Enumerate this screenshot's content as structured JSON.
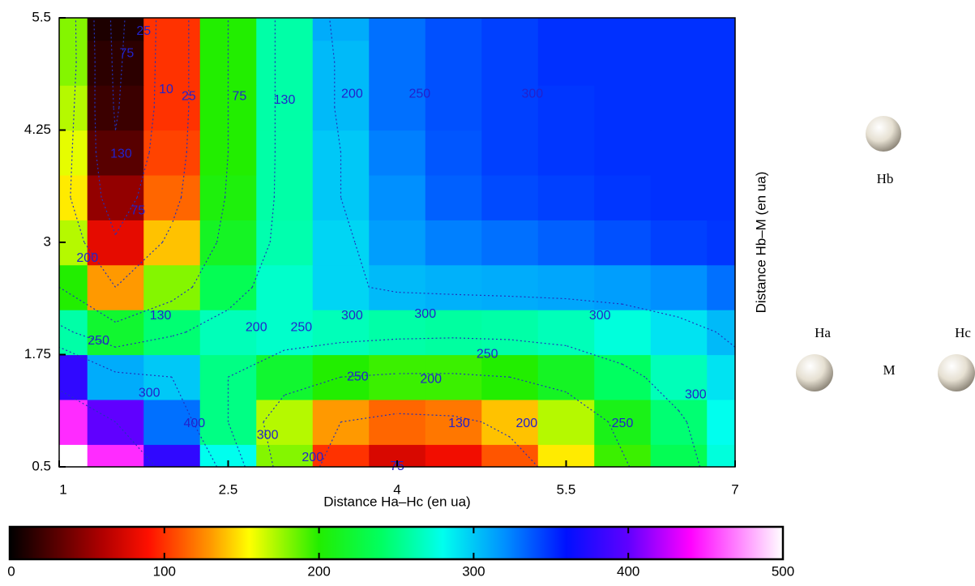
{
  "chart_data": {
    "type": "heatmap",
    "x_label": "Distance Ha–Hc (en ua)",
    "y_label": "Distance Hb–M (en ua)",
    "xlim": [
      1,
      7
    ],
    "ylim": [
      0.5,
      5.5
    ],
    "xticks": [
      1,
      2.5,
      4,
      5.5,
      7
    ],
    "yticks": [
      0.5,
      1.75,
      3,
      4.25,
      5.5
    ],
    "x": [
      1,
      1.5,
      2,
      2.5,
      3,
      3.5,
      4,
      4.5,
      5,
      5.5,
      6,
      6.5,
      7
    ],
    "y": [
      0.5,
      1,
      1.5,
      2,
      2.5,
      3,
      3.5,
      4,
      4.5,
      5,
      5.5
    ],
    "z": [
      [
        500,
        450,
        380,
        280,
        180,
        100,
        75,
        85,
        110,
        150,
        195,
        235,
        275
      ],
      [
        450,
        400,
        330,
        250,
        170,
        130,
        115,
        120,
        140,
        170,
        210,
        245,
        280
      ],
      [
        380,
        310,
        300,
        250,
        220,
        200,
        195,
        195,
        200,
        215,
        240,
        265,
        290
      ],
      [
        260,
        220,
        245,
        265,
        270,
        265,
        260,
        258,
        260,
        265,
        275,
        290,
        305
      ],
      [
        200,
        130,
        180,
        235,
        270,
        295,
        305,
        308,
        310,
        312,
        315,
        320,
        330
      ],
      [
        170,
        80,
        140,
        215,
        262,
        295,
        315,
        325,
        330,
        335,
        340,
        345,
        348
      ],
      [
        150,
        50,
        115,
        205,
        260,
        300,
        320,
        335,
        342,
        345,
        348,
        350,
        350
      ],
      [
        160,
        30,
        105,
        200,
        260,
        300,
        325,
        338,
        345,
        348,
        350,
        350,
        350
      ],
      [
        170,
        20,
        100,
        200,
        260,
        305,
        330,
        340,
        345,
        348,
        350,
        350,
        350
      ],
      [
        180,
        15,
        100,
        200,
        260,
        305,
        330,
        340,
        345,
        350,
        350,
        350,
        350
      ],
      [
        180,
        10,
        100,
        200,
        260,
        310,
        330,
        340,
        345,
        350,
        350,
        350,
        350
      ]
    ],
    "contour_levels": [
      25,
      75,
      130,
      200,
      250,
      300,
      400
    ],
    "contour_color": "#2233bb",
    "contour_labels": [
      {
        "x": 1.75,
        "y": 5.35,
        "label": 25
      },
      {
        "x": 1.6,
        "y": 5.1,
        "label": 75
      },
      {
        "x": 1.95,
        "y": 4.7,
        "label": 10
      },
      {
        "x": 2.15,
        "y": 4.62,
        "label": 25
      },
      {
        "x": 2.6,
        "y": 4.62,
        "label": 75
      },
      {
        "x": 3.0,
        "y": 4.58,
        "label": 130
      },
      {
        "x": 3.6,
        "y": 4.65,
        "label": 200
      },
      {
        "x": 4.2,
        "y": 4.65,
        "label": 250
      },
      {
        "x": 5.2,
        "y": 4.65,
        "label": 300
      },
      {
        "x": 1.55,
        "y": 3.98,
        "label": 130
      },
      {
        "x": 1.7,
        "y": 3.35,
        "label": 75
      },
      {
        "x": 1.25,
        "y": 2.82,
        "label": 200
      },
      {
        "x": 1.9,
        "y": 2.18,
        "label": 130
      },
      {
        "x": 1.35,
        "y": 1.9,
        "label": 250
      },
      {
        "x": 2.75,
        "y": 2.05,
        "label": 200
      },
      {
        "x": 3.15,
        "y": 2.05,
        "label": 250
      },
      {
        "x": 3.6,
        "y": 2.18,
        "label": 300
      },
      {
        "x": 4.25,
        "y": 2.2,
        "label": 300
      },
      {
        "x": 5.8,
        "y": 2.18,
        "label": 300
      },
      {
        "x": 4.8,
        "y": 1.75,
        "label": 250
      },
      {
        "x": 3.65,
        "y": 1.5,
        "label": 250
      },
      {
        "x": 4.3,
        "y": 1.47,
        "label": 200
      },
      {
        "x": 6.65,
        "y": 1.3,
        "label": 300
      },
      {
        "x": 6.0,
        "y": 0.98,
        "label": 250
      },
      {
        "x": 5.15,
        "y": 0.98,
        "label": 200
      },
      {
        "x": 4.55,
        "y": 0.98,
        "label": 130
      },
      {
        "x": 1.8,
        "y": 1.32,
        "label": 300
      },
      {
        "x": 2.2,
        "y": 0.98,
        "label": 400
      },
      {
        "x": 2.85,
        "y": 0.85,
        "label": 300
      },
      {
        "x": 3.25,
        "y": 0.6,
        "label": 200
      },
      {
        "x": 4.0,
        "y": 0.5,
        "label": 75
      }
    ],
    "clim": [
      0,
      500
    ],
    "colorbar_ticks": [
      0,
      100,
      200,
      300,
      400,
      500
    ],
    "colormap": [
      [
        0,
        "#000000"
      ],
      [
        60,
        "#b00000"
      ],
      [
        90,
        "#ff1000"
      ],
      [
        130,
        "#ff9900"
      ],
      [
        155,
        "#ffff00"
      ],
      [
        200,
        "#22ee00"
      ],
      [
        240,
        "#00ff60"
      ],
      [
        280,
        "#00ffee"
      ],
      [
        320,
        "#0090ff"
      ],
      [
        360,
        "#0010ff"
      ],
      [
        400,
        "#6000ff"
      ],
      [
        440,
        "#ff00ff"
      ],
      [
        500,
        "#ffffff"
      ]
    ]
  },
  "diagram": {
    "atoms": [
      "Hb",
      "Ha",
      "M",
      "Hc"
    ]
  }
}
